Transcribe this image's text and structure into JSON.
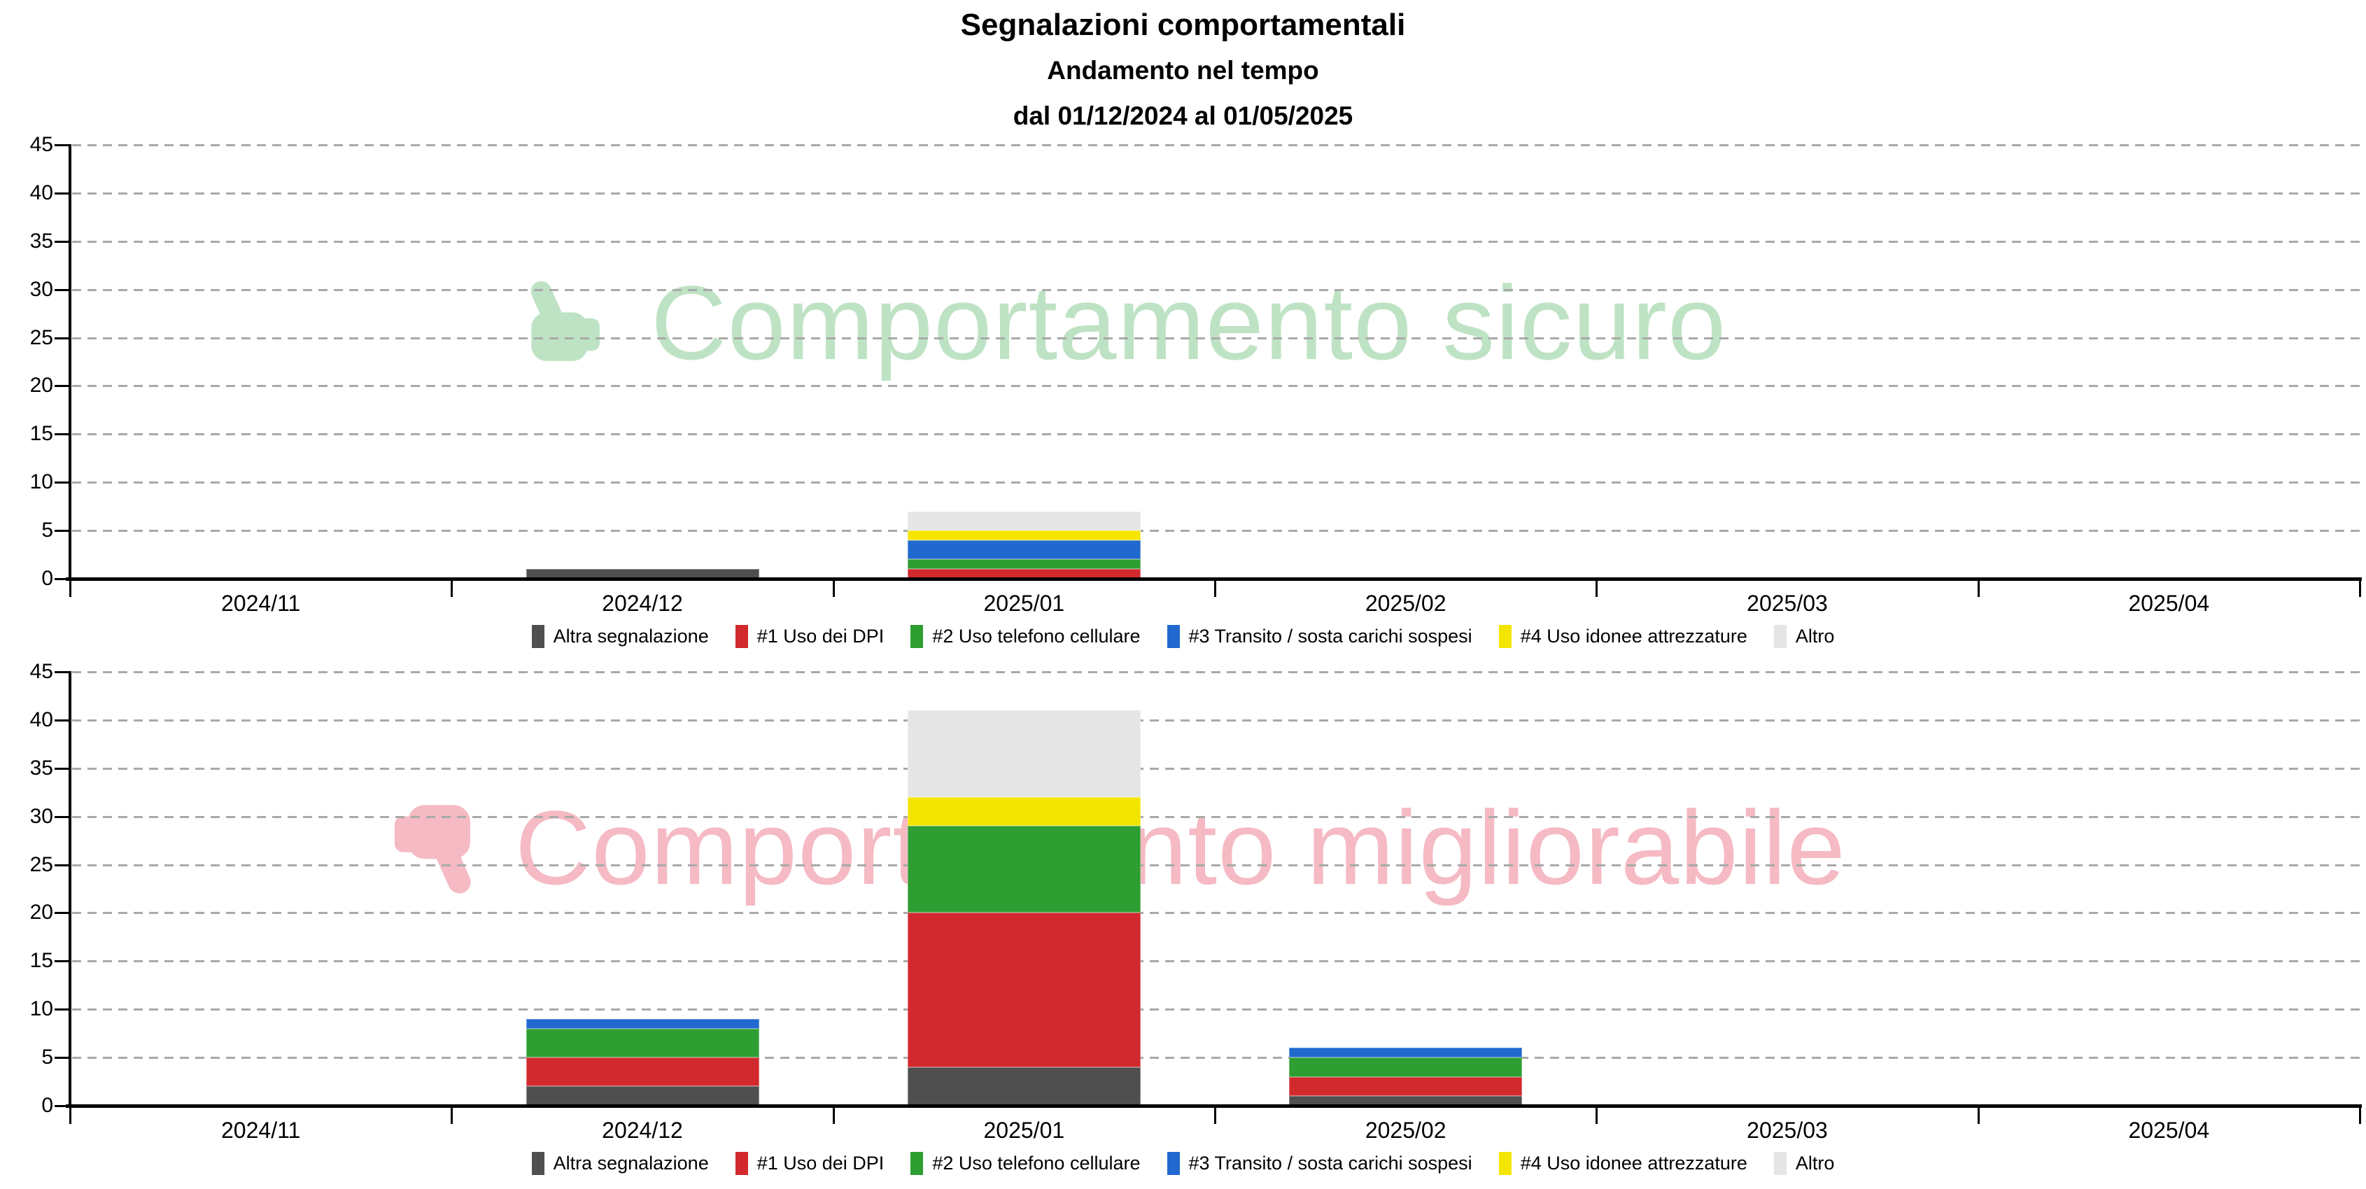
{
  "header": {
    "title": "Segnalazioni comportamentali",
    "subtitle": "Andamento nel tempo",
    "period": "dal 01/12/2024 al 01/05/2025"
  },
  "colors": {
    "axis": "#000000",
    "gridline": "#a9a9a9",
    "watermark_safe": "#bee3c4",
    "watermark_improvable": "#f5bac3"
  },
  "chart_data": [
    {
      "type": "bar",
      "stacked": true,
      "title": "Comportamento sicuro",
      "watermark": {
        "text": "Comportamento sicuro",
        "icon": "thumbs-up-icon",
        "color": "#bee3c4"
      },
      "categories": [
        "2024/11",
        "2024/12",
        "2025/01",
        "2025/02",
        "2025/03",
        "2025/04"
      ],
      "series": [
        {
          "name": "Altra segnalazione",
          "color": "#4f4f4f",
          "values": [
            0,
            1,
            0,
            0,
            0,
            0
          ]
        },
        {
          "name": "#1 Uso dei DPI",
          "color": "#d2292e",
          "values": [
            0,
            0,
            1,
            0,
            0,
            0
          ]
        },
        {
          "name": "#2 Uso telefono cellulare",
          "color": "#2f9e32",
          "values": [
            0,
            0,
            1,
            0,
            0,
            0
          ]
        },
        {
          "name": "#3 Transito / sosta carichi sospesi",
          "color": "#2169ce",
          "values": [
            0,
            0,
            2,
            0,
            0,
            0
          ]
        },
        {
          "name": "#4 Uso idonee attrezzature",
          "color": "#f3e500",
          "values": [
            0,
            0,
            1,
            0,
            0,
            0
          ]
        },
        {
          "name": "Altro",
          "color": "#e5e5e5",
          "values": [
            0,
            0,
            2,
            0,
            0,
            0
          ]
        }
      ],
      "ylim": [
        0,
        45
      ],
      "ytick_step": 5,
      "grid": "dashed-horizontal",
      "legend_position": "bottom"
    },
    {
      "type": "bar",
      "stacked": true,
      "title": "Comportamento migliorabile",
      "watermark": {
        "text": "Comportamento migliorabile",
        "icon": "thumbs-down-icon",
        "color": "#f5bac3"
      },
      "categories": [
        "2024/11",
        "2024/12",
        "2025/01",
        "2025/02",
        "2025/03",
        "2025/04"
      ],
      "series": [
        {
          "name": "Altra segnalazione",
          "color": "#4f4f4f",
          "values": [
            0,
            2,
            4,
            1,
            0,
            0
          ]
        },
        {
          "name": "#1 Uso dei DPI",
          "color": "#d2292e",
          "values": [
            0,
            3,
            16,
            2,
            0,
            0
          ]
        },
        {
          "name": "#2 Uso telefono cellulare",
          "color": "#2f9e32",
          "values": [
            0,
            3,
            9,
            2,
            0,
            0
          ]
        },
        {
          "name": "#3 Transito / sosta carichi sospesi",
          "color": "#2169ce",
          "values": [
            0,
            1,
            0,
            1,
            0,
            0
          ]
        },
        {
          "name": "#4 Uso idonee attrezzature",
          "color": "#f3e500",
          "values": [
            0,
            0,
            3,
            0,
            0,
            0
          ]
        },
        {
          "name": "Altro",
          "color": "#e5e5e5",
          "values": [
            0,
            0,
            9,
            0,
            0,
            0
          ]
        }
      ],
      "ylim": [
        0,
        45
      ],
      "ytick_step": 5,
      "grid": "dashed-horizontal",
      "legend_position": "bottom"
    }
  ]
}
